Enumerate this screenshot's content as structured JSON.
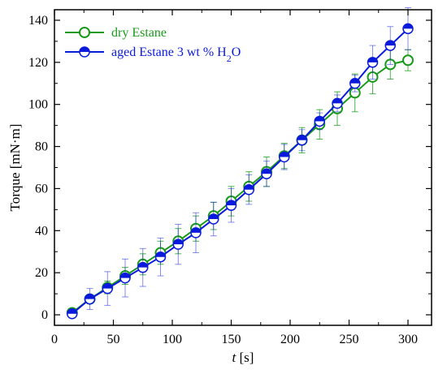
{
  "chart_data": {
    "type": "line",
    "xlabel_var": "t",
    "xlabel_unit": " [s]",
    "ylabel": "Torque [mN·m]",
    "xlim": [
      0,
      320
    ],
    "ylim": [
      -5,
      145
    ],
    "xticks": [
      0,
      50,
      100,
      150,
      200,
      250,
      300
    ],
    "yticks": [
      0,
      20,
      40,
      60,
      80,
      100,
      120,
      140
    ],
    "grid": false,
    "legend_position": "top-left",
    "x": [
      15,
      30,
      45,
      60,
      75,
      90,
      105,
      120,
      135,
      150,
      165,
      180,
      195,
      210,
      225,
      240,
      255,
      270,
      285,
      300
    ],
    "series": [
      {
        "name": "dry Estane",
        "color": "#1a9a1a",
        "marker": "open-circle",
        "values": [
          1,
          7.5,
          13,
          18.5,
          24,
          29.5,
          35,
          41,
          47,
          54,
          61,
          68,
          75.5,
          83,
          90.5,
          98,
          105.5,
          113,
          119,
          121
        ],
        "errors": [
          1,
          1.5,
          3,
          4,
          5,
          5.5,
          6,
          6,
          6.5,
          7,
          7,
          7,
          6,
          6,
          7,
          8,
          9,
          8,
          7,
          5
        ]
      },
      {
        "name": "aged Estane 3 wt % H",
        "name_sub": "2",
        "name_tail": "O",
        "color": "#0a1adc",
        "marker": "half-filled-circle",
        "values": [
          0.5,
          7.5,
          12.5,
          17.5,
          22.5,
          27.5,
          33.5,
          39,
          45.5,
          52,
          59.5,
          67,
          75,
          83,
          92,
          100.5,
          110,
          120,
          128,
          136
        ],
        "errors": [
          1,
          5,
          8,
          9,
          9,
          9,
          9.5,
          9.5,
          8,
          8,
          7,
          6,
          6,
          5,
          4,
          4,
          4,
          8,
          9,
          10
        ]
      }
    ]
  }
}
